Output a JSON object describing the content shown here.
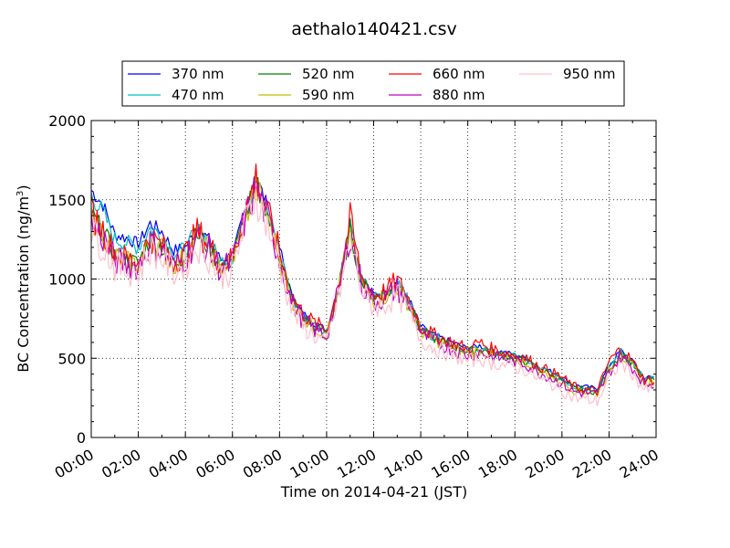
{
  "chart_data": {
    "type": "line",
    "title": "aethalo140421.csv",
    "xlabel": "Time on 2014-04-21 (JST)",
    "ylabel": "BC Concentration (ng/m",
    "ylabel_sup": "3",
    "ylabel_end": ")",
    "xlim": [
      0,
      24
    ],
    "ylim": [
      0,
      2000
    ],
    "grid": true,
    "legend_position": "top, above plot",
    "x_tick_values": [
      0,
      2,
      4,
      6,
      8,
      10,
      12,
      14,
      16,
      18,
      20,
      22,
      24
    ],
    "x_tick_labels": [
      "00:00",
      "02:00",
      "04:00",
      "06:00",
      "08:00",
      "10:00",
      "12:00",
      "14:00",
      "16:00",
      "18:00",
      "20:00",
      "22:00",
      "24:00"
    ],
    "y_tick_values": [
      0,
      500,
      1000,
      1500,
      2000
    ],
    "y_tick_labels": [
      "0",
      "500",
      "1000",
      "1500",
      "2000"
    ],
    "x": [
      0,
      0.5,
      1,
      1.5,
      2,
      2.5,
      3,
      3.5,
      4,
      4.5,
      5,
      5.5,
      6,
      6.5,
      7,
      7.5,
      8,
      8.5,
      9,
      9.5,
      10,
      10.5,
      11,
      11.5,
      12,
      12.5,
      13,
      13.5,
      14,
      14.5,
      15,
      15.5,
      16,
      16.5,
      17,
      17.5,
      18,
      18.5,
      19,
      19.5,
      20,
      20.5,
      21,
      21.5,
      22,
      22.5,
      23,
      23.5
    ],
    "series": [
      {
        "name": "370 nm",
        "color": "#0000ff",
        "values": [
          1560,
          1470,
          1280,
          1260,
          1220,
          1350,
          1300,
          1180,
          1200,
          1320,
          1250,
          1120,
          1150,
          1400,
          1650,
          1450,
          1200,
          900,
          780,
          720,
          680,
          950,
          1350,
          1000,
          900,
          920,
          980,
          870,
          700,
          650,
          620,
          590,
          560,
          580,
          550,
          540,
          520,
          500,
          450,
          420,
          380,
          330,
          320,
          310,
          450,
          550,
          480,
          380
        ]
      },
      {
        "name": "470 nm",
        "color": "#00bfbf",
        "values": [
          1530,
          1420,
          1250,
          1230,
          1200,
          1320,
          1280,
          1160,
          1190,
          1310,
          1240,
          1110,
          1140,
          1390,
          1620,
          1420,
          1180,
          890,
          770,
          710,
          670,
          940,
          1330,
          990,
          890,
          910,
          970,
          860,
          690,
          640,
          610,
          580,
          550,
          570,
          540,
          530,
          510,
          490,
          440,
          410,
          370,
          320,
          310,
          300,
          440,
          540,
          470,
          370
        ]
      },
      {
        "name": "520 nm",
        "color": "#008000",
        "values": [
          1400,
          1300,
          1150,
          1120,
          1100,
          1250,
          1200,
          1100,
          1150,
          1280,
          1200,
          1080,
          1120,
          1370,
          1600,
          1400,
          1150,
          880,
          760,
          700,
          660,
          930,
          1310,
          980,
          880,
          900,
          960,
          850,
          680,
          630,
          600,
          570,
          540,
          560,
          530,
          520,
          500,
          480,
          430,
          400,
          360,
          310,
          300,
          290,
          430,
          530,
          460,
          360
        ]
      },
      {
        "name": "590 nm",
        "color": "#bfbf00",
        "values": [
          1390,
          1290,
          1140,
          1110,
          1090,
          1240,
          1190,
          1090,
          1140,
          1270,
          1190,
          1070,
          1110,
          1360,
          1590,
          1390,
          1140,
          870,
          750,
          690,
          650,
          920,
          1300,
          970,
          870,
          890,
          950,
          840,
          670,
          620,
          590,
          560,
          530,
          550,
          520,
          510,
          490,
          470,
          420,
          390,
          350,
          300,
          290,
          280,
          420,
          520,
          450,
          350
        ]
      },
      {
        "name": "660 nm",
        "color": "#ff0000",
        "values": [
          1420,
          1310,
          1160,
          1130,
          1110,
          1260,
          1210,
          1110,
          1160,
          1300,
          1220,
          1090,
          1130,
          1390,
          1650,
          1420,
          1170,
          900,
          780,
          720,
          680,
          950,
          1380,
          1000,
          900,
          920,
          990,
          870,
          700,
          650,
          620,
          590,
          560,
          600,
          560,
          540,
          520,
          500,
          450,
          420,
          380,
          320,
          300,
          290,
          480,
          560,
          480,
          360
        ]
      },
      {
        "name": "880 nm",
        "color": "#bf00bf",
        "values": [
          1350,
          1260,
          1120,
          1100,
          1080,
          1230,
          1180,
          1080,
          1130,
          1260,
          1180,
          1060,
          1100,
          1360,
          1580,
          1380,
          1130,
          860,
          740,
          680,
          640,
          910,
          1290,
          960,
          860,
          880,
          940,
          830,
          660,
          610,
          580,
          550,
          520,
          540,
          510,
          500,
          480,
          460,
          410,
          380,
          340,
          290,
          280,
          270,
          410,
          510,
          440,
          340
        ]
      },
      {
        "name": "950 nm",
        "color": "#ffc0cb",
        "values": [
          1300,
          1220,
          1080,
          1060,
          1040,
          1190,
          1140,
          1040,
          1090,
          1220,
          1140,
          1020,
          1060,
          1320,
          1540,
          1340,
          1090,
          820,
          700,
          640,
          600,
          870,
          1250,
          920,
          820,
          840,
          900,
          790,
          620,
          570,
          540,
          510,
          480,
          500,
          470,
          460,
          440,
          420,
          370,
          340,
          300,
          250,
          240,
          230,
          370,
          470,
          400,
          300
        ]
      }
    ]
  }
}
